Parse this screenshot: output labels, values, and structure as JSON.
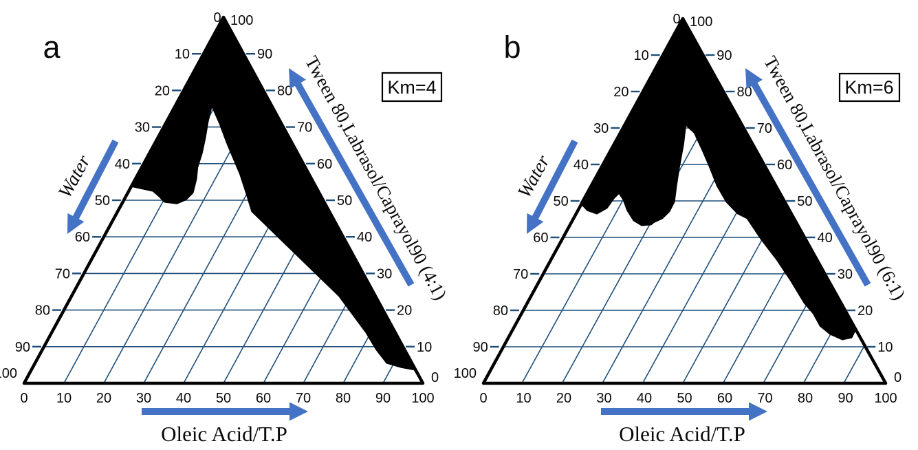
{
  "style": {
    "background": "#ffffff",
    "grid_color": "#1f4e79",
    "tick_color": "#1f4e79",
    "arrow_color": "#4472c4",
    "region_color": "#000000",
    "border_color": "#000000",
    "text_color": "#0a0a0a"
  },
  "chart_data": [
    {
      "type": "ternary",
      "panel": "a",
      "annotation_box": "Km=4",
      "axes": {
        "left": {
          "label": "Water",
          "ticks": [
            0,
            10,
            20,
            30,
            40,
            50,
            60,
            70,
            80,
            90,
            100
          ],
          "arrow_direction": "down-left, increasing Water"
        },
        "right": {
          "label": "Tween 80,Labrasol/Caprayol90 (4:1)",
          "ticks": [
            100,
            90,
            80,
            70,
            60,
            50,
            40,
            30,
            20,
            10,
            0
          ],
          "arrow_direction": "up toward apex, increasing surfactant mix"
        },
        "bottom": {
          "label": "Oleic Acid/T.P",
          "ticks": [
            0,
            10,
            20,
            30,
            40,
            50,
            60,
            70,
            80,
            90,
            100
          ],
          "arrow_direction": "rightward, increasing Oleic Acid"
        }
      },
      "grid": {
        "smix_lines": [
          10,
          20,
          30,
          40,
          50,
          60,
          70,
          80,
          90
        ],
        "oleic_lines": [
          10,
          20,
          30,
          40,
          50,
          60,
          70,
          80,
          90
        ]
      },
      "region": {
        "description": "black shaded phase region",
        "fill": "#000000",
        "coordinates": "pairs of [surfactant_mix_percent, oleic_acid_percent]; water = 100 - smix - oleic",
        "boundary_points_smix_oleic": [
          [
            100,
            0
          ],
          [
            0,
            100
          ],
          [
            3.8,
            96
          ],
          [
            4.5,
            92.2
          ],
          [
            5.6,
            88.2
          ],
          [
            9.4,
            83.6
          ],
          [
            13.9,
            78.9
          ],
          [
            23.9,
            67.1
          ],
          [
            38.9,
            45.4
          ],
          [
            47,
            33.7
          ],
          [
            52.1,
            29.7
          ],
          [
            57.1,
            25.7
          ],
          [
            61.5,
            21.8
          ],
          [
            65.8,
            18
          ],
          [
            70.9,
            13.7
          ],
          [
            76.1,
            9
          ],
          [
            71.4,
            10.3
          ],
          [
            67.1,
            11.8
          ],
          [
            62.8,
            13.1
          ],
          [
            59,
            13.9
          ],
          [
            55.8,
            15.2
          ],
          [
            52.1,
            16.2
          ],
          [
            50.2,
            15.4
          ],
          [
            49.2,
            13.7
          ],
          [
            49.6,
            10.5
          ],
          [
            51.1,
            8.4
          ],
          [
            52.6,
            6.1
          ],
          [
            53.4,
            2.3
          ],
          [
            53.9,
            0
          ]
        ]
      }
    },
    {
      "type": "ternary",
      "panel": "b",
      "annotation_box": "Km=6",
      "axes": {
        "left": {
          "label": "Water",
          "ticks": [
            0,
            10,
            20,
            30,
            40,
            50,
            60,
            70,
            80,
            90,
            100
          ],
          "arrow_direction": "down-left, increasing Water"
        },
        "right": {
          "label": "Tween 80,Labrasol/Caprayol90 (6:1)",
          "ticks": [
            100,
            90,
            80,
            70,
            60,
            50,
            40,
            30,
            20,
            10,
            0
          ],
          "arrow_direction": "up toward apex, increasing surfactant mix"
        },
        "bottom": {
          "label": "Oleic Acid/T.P",
          "ticks": [
            0,
            10,
            20,
            30,
            40,
            50,
            60,
            70,
            80,
            90,
            100
          ],
          "arrow_direction": "rightward, increasing Oleic Acid"
        }
      },
      "grid": {
        "smix_lines": [
          10,
          20,
          30,
          40,
          50,
          60,
          70,
          80,
          90
        ],
        "oleic_lines": [
          10,
          20,
          30,
          40,
          50,
          60,
          70,
          80,
          90
        ]
      },
      "region": {
        "description": "black shaded phase region",
        "fill": "#000000",
        "coordinates": "pairs of [surfactant_mix_percent, oleic_acid_percent]; water = 100 - smix - oleic",
        "boundary_points_smix_oleic": [
          [
            100,
            0
          ],
          [
            14.5,
            85.5
          ],
          [
            12.6,
            85.6
          ],
          [
            12.1,
            83.6
          ],
          [
            13.6,
            79.8
          ],
          [
            15.8,
            76.3
          ],
          [
            19.2,
            72.9
          ],
          [
            22.1,
            69.2
          ],
          [
            28.3,
            62.7
          ],
          [
            34,
            56.4
          ],
          [
            39.6,
            49.7
          ],
          [
            45.3,
            43.4
          ],
          [
            46.6,
            40.4
          ],
          [
            49.8,
            36
          ],
          [
            54.2,
            31.5
          ],
          [
            59.2,
            27.2
          ],
          [
            63.6,
            23.3
          ],
          [
            68.7,
            18.6
          ],
          [
            71.1,
            15.1
          ],
          [
            65.5,
            17.3
          ],
          [
            59.2,
            19.4
          ],
          [
            54.2,
            21.2
          ],
          [
            49.8,
            22.9
          ],
          [
            47.2,
            23
          ],
          [
            45.3,
            22.2
          ],
          [
            44.2,
            20.6
          ],
          [
            43.6,
            20.3
          ],
          [
            43.4,
            18.1
          ],
          [
            44.7,
            15.5
          ],
          [
            47.5,
            12.5
          ],
          [
            50.4,
            10.1
          ],
          [
            52.3,
            8
          ],
          [
            50.8,
            7.4
          ],
          [
            48.1,
            7
          ],
          [
            46.6,
            5.3
          ],
          [
            47.5,
            2.6
          ],
          [
            49.4,
            0
          ]
        ]
      }
    }
  ]
}
